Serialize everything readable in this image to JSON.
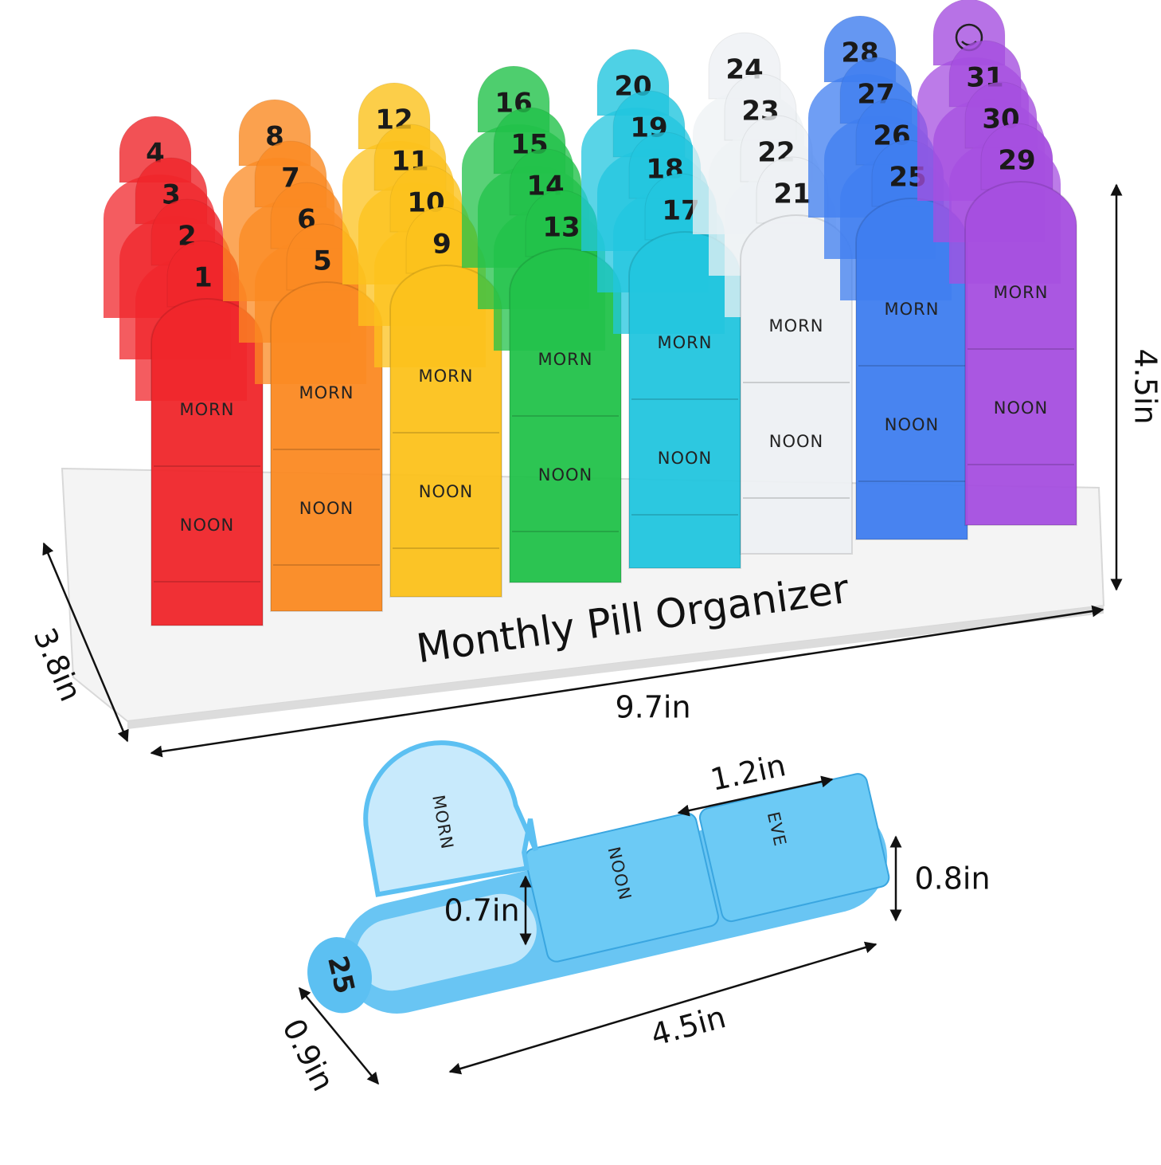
{
  "product_title": "Monthly Pill Organizer",
  "case_labels": [
    "MORN",
    "NOON",
    "EVE"
  ],
  "columns": [
    {
      "color": "#f0262b",
      "days": [
        "1",
        "2",
        "3",
        "4"
      ]
    },
    {
      "color": "#fb8a22",
      "days": [
        "5",
        "6",
        "7",
        "8"
      ]
    },
    {
      "color": "#fcc21c",
      "days": [
        "9",
        "10",
        "11",
        "12"
      ]
    },
    {
      "color": "#22c24a",
      "days": [
        "13",
        "14",
        "15",
        "16"
      ]
    },
    {
      "color": "#22c6df",
      "days": [
        "17",
        "18",
        "19",
        "20"
      ]
    },
    {
      "color": "#eef1f4",
      "days": [
        "21",
        "22",
        "23",
        "24"
      ]
    },
    {
      "color": "#3f7ef0",
      "days": [
        "25",
        "26",
        "27",
        "28"
      ]
    },
    {
      "color": "#a64fe0",
      "days": [
        "29",
        "30",
        "31"
      ]
    }
  ],
  "organizer_dimensions": {
    "width": "9.7in",
    "depth": "3.8in",
    "height": "4.5in"
  },
  "single_case": {
    "day": "25",
    "dimensions": {
      "compartment_width": "1.2in",
      "height": "0.8in",
      "compartment_depth": "0.7in",
      "depth": "0.9in",
      "length": "4.5in"
    }
  }
}
